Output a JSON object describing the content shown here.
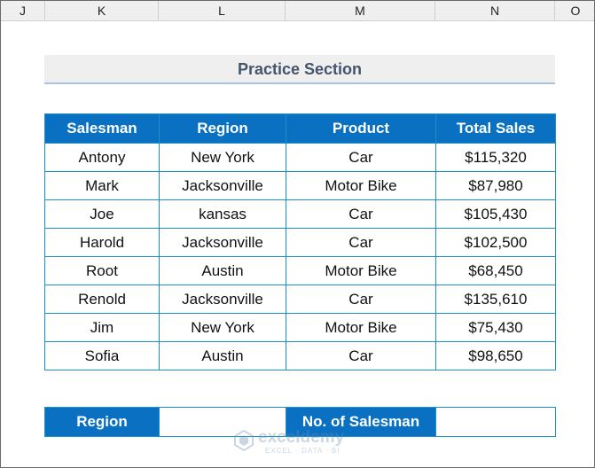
{
  "column_headers": [
    "J",
    "K",
    "L",
    "M",
    "N",
    "O"
  ],
  "title": "Practice Section",
  "table": {
    "headers": [
      "Salesman",
      "Region",
      "Product",
      "Total Sales"
    ],
    "rows": [
      [
        "Antony",
        "New York",
        "Car",
        "$115,320"
      ],
      [
        "Mark",
        "Jacksonville",
        "Motor Bike",
        "$87,980"
      ],
      [
        "Joe",
        "kansas",
        "Car",
        "$105,430"
      ],
      [
        "Harold",
        "Jacksonville",
        "Car",
        "$102,500"
      ],
      [
        "Root",
        "Austin",
        "Motor Bike",
        "$68,450"
      ],
      [
        "Renold",
        "Jacksonville",
        "Car",
        "$135,610"
      ],
      [
        "Jim",
        "New York",
        "Motor Bike",
        "$75,430"
      ],
      [
        "Sofia",
        "Austin",
        "Car",
        "$98,650"
      ]
    ]
  },
  "lookup": {
    "region_label": "Region",
    "region_value": "",
    "count_label": "No. of Salesman",
    "count_value": ""
  },
  "watermark": {
    "name": "exceldemy",
    "tagline": "EXCEL · DATA · BI"
  },
  "colors": {
    "header_fill": "#0a70c2",
    "border": "#1e90c8",
    "title_text": "#44546a"
  }
}
